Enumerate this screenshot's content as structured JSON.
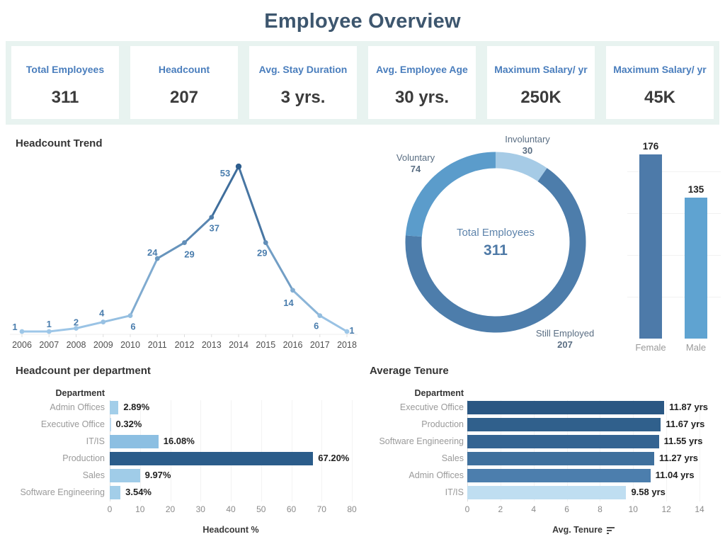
{
  "title": "Employee Overview",
  "kpis": [
    {
      "label": "Total Employees",
      "value": "311"
    },
    {
      "label": "Headcount",
      "value": "207"
    },
    {
      "label": "Avg. Stay Duration",
      "value": "3 yrs."
    },
    {
      "label": "Avg. Employee Age",
      "value": "30 yrs."
    },
    {
      "label": "Maximum Salary/ yr",
      "value": "250K"
    },
    {
      "label": "Maximum Salary/ yr",
      "value": "45K"
    }
  ],
  "sections": {
    "headcount_trend": {
      "title": "Headcount Trend"
    },
    "headcount_dept": {
      "title": "Headcount per department"
    },
    "avg_tenure": {
      "title": "Average Tenure"
    }
  },
  "colors": {
    "band_bg": "#e8f3f0",
    "kpi_label": "#4a7ebd",
    "title": "#3d566e",
    "line_ramp_low": "#9ec7e8",
    "line_ramp_high": "#2e5e8e",
    "point_label": "#4a7dad",
    "donut_label": "#5a6e83"
  },
  "chart_data": [
    {
      "id": "headcount_trend",
      "type": "line",
      "title": "Headcount Trend",
      "x": [
        2006,
        2007,
        2008,
        2009,
        2010,
        2011,
        2012,
        2013,
        2014,
        2015,
        2016,
        2017,
        2018
      ],
      "values": [
        1,
        1,
        2,
        4,
        6,
        24,
        29,
        37,
        53,
        29,
        14,
        6,
        1
      ],
      "ylim": [
        0,
        55
      ],
      "grid": false,
      "color_ramp": [
        "#9ec7e8",
        "#2e5e8e"
      ]
    },
    {
      "id": "termination_donut",
      "type": "pie",
      "slices": [
        {
          "label": "Involuntary",
          "value": 30,
          "color": "#a6cbe6"
        },
        {
          "label": "Still Employed",
          "value": 207,
          "color": "#4d7dab"
        },
        {
          "label": "Voluntary",
          "value": 74,
          "color": "#5b9ccb"
        }
      ],
      "center_label": "Total Employees",
      "center_value": "311"
    },
    {
      "id": "gender_bar",
      "type": "bar",
      "categories": [
        "Female",
        "Male"
      ],
      "values": [
        176,
        135
      ],
      "colors": [
        "#4d7aa9",
        "#5fa3d1"
      ],
      "ylim": [
        0,
        185
      ]
    },
    {
      "id": "headcount_dept",
      "type": "bar",
      "orientation": "horizontal",
      "title": "Headcount per department",
      "group_label": "Department",
      "categories": [
        "Admin Offices",
        "Executive Office",
        "IT/IS",
        "Production",
        "Sales",
        "Software Engineering"
      ],
      "values": [
        2.89,
        0.32,
        16.08,
        67.2,
        9.97,
        3.54
      ],
      "labels": [
        "2.89%",
        "0.32%",
        "16.08%",
        "67.20%",
        "9.97%",
        "3.54%"
      ],
      "colors": [
        "#a3cee9",
        "#bcd9ef",
        "#8cbfe2",
        "#2b5c8a",
        "#a0cce8",
        "#a3cee9"
      ],
      "xlabel": "Headcount %",
      "xlim": [
        0,
        80
      ],
      "xticks": [
        0,
        10,
        20,
        30,
        40,
        50,
        60,
        70,
        80
      ],
      "grid": true
    },
    {
      "id": "avg_tenure",
      "type": "bar",
      "orientation": "horizontal",
      "title": "Average Tenure",
      "group_label": "Department",
      "categories": [
        "Executive Office",
        "Production",
        "Software Engineering",
        "Sales",
        "Admin Offices",
        "IT/IS"
      ],
      "values": [
        11.87,
        11.67,
        11.55,
        11.27,
        11.04,
        9.58
      ],
      "labels": [
        "11.87 yrs",
        "11.67 yrs",
        "11.55 yrs",
        "11.27 yrs",
        "11.04 yrs",
        "9.58 yrs"
      ],
      "colors": [
        "#2a5783",
        "#30608c",
        "#346492",
        "#3f709d",
        "#4c7ead",
        "#bfdef1"
      ],
      "xlabel": "Avg. Tenure",
      "xlim": [
        0,
        14
      ],
      "xticks": [
        0,
        2,
        4,
        6,
        8,
        10,
        12,
        14
      ],
      "grid": true,
      "sorted": "descending"
    }
  ]
}
